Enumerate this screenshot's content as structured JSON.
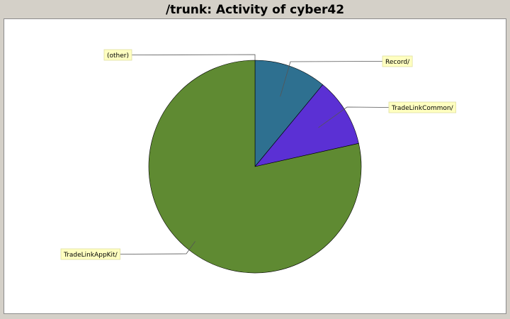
{
  "chart_data": {
    "type": "pie",
    "title": "/trunk: Activity of cyber42",
    "slices": [
      {
        "label": "Record/",
        "value": 11,
        "color": "#2e7090"
      },
      {
        "label": "TradeLinkCommon/",
        "value": 10.5,
        "color": "#5b30d4"
      },
      {
        "label": "TradeLinkAppKit/",
        "value": 78.5,
        "color": "#5f8a32"
      },
      {
        "label": "(other)",
        "value": 0,
        "color": "#c8c8c8"
      }
    ],
    "start_angle_deg": 0,
    "direction": "clockwise",
    "label_box_color": "#ffffc0"
  }
}
